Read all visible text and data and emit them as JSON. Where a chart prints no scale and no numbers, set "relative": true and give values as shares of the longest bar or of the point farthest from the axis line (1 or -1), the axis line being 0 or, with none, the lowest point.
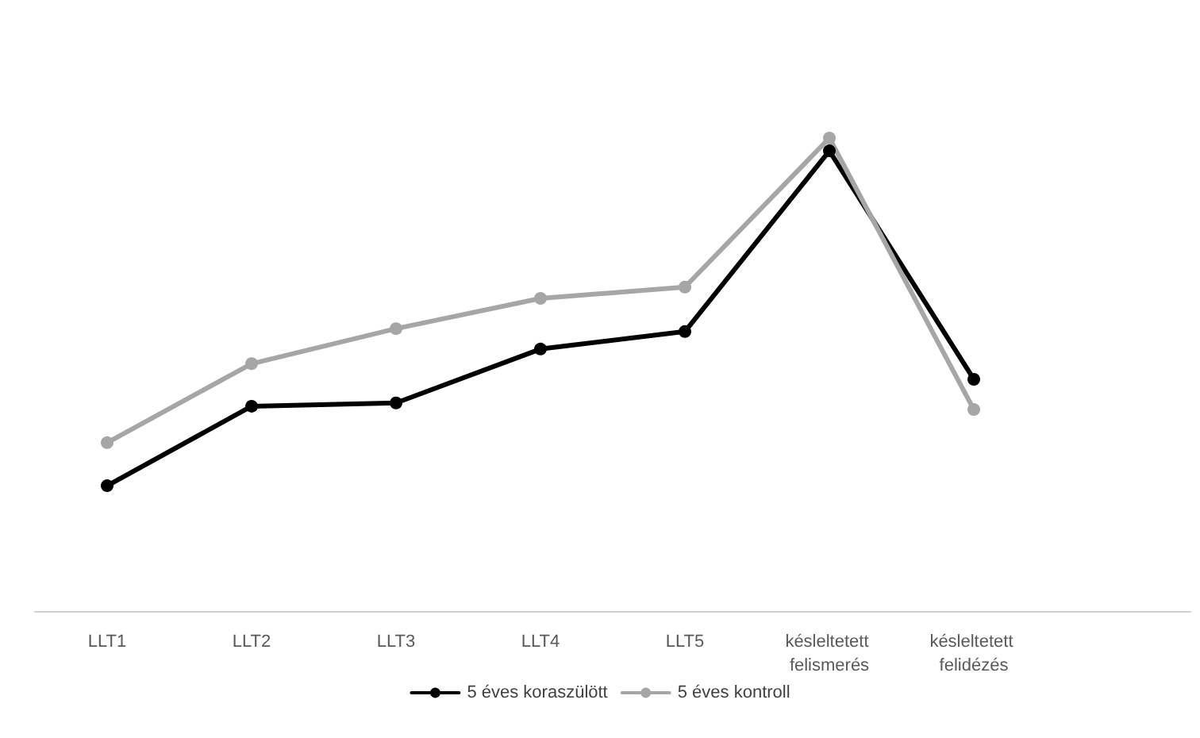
{
  "chart_data": {
    "type": "line",
    "relative": true,
    "categories": [
      "LLT1",
      "LLT2",
      "LLT3",
      "LLT4",
      "LLT5",
      "késleltetett felismerés",
      "késleltetett felidézés",
      null
    ],
    "series": [
      {
        "name": "5 éves koraszülött",
        "color": "#000000",
        "values": [
          0.265,
          0.433,
          0.44,
          0.554,
          0.591,
          0.973,
          0.49,
          null
        ]
      },
      {
        "name": "5 éves kontroll",
        "color": "#a6a6a6",
        "values": [
          0.356,
          0.523,
          0.597,
          0.661,
          0.685,
          1,
          0.426,
          null
        ]
      }
    ],
    "legend": "bottom",
    "grid": false,
    "marker": "circle",
    "line_style": "solid"
  }
}
